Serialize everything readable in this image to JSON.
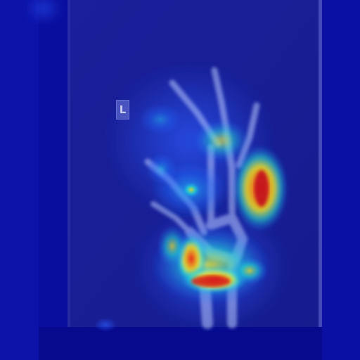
{
  "image": {
    "modality": "hand-radiograph-heatmap-overlay",
    "side_marker": "L",
    "colormap": {
      "low": "#0b0ea6",
      "mid_low": "#1e6bff",
      "mid": "#22e3d0",
      "mid_high": "#f3e61c",
      "high": "#e3161b"
    }
  }
}
